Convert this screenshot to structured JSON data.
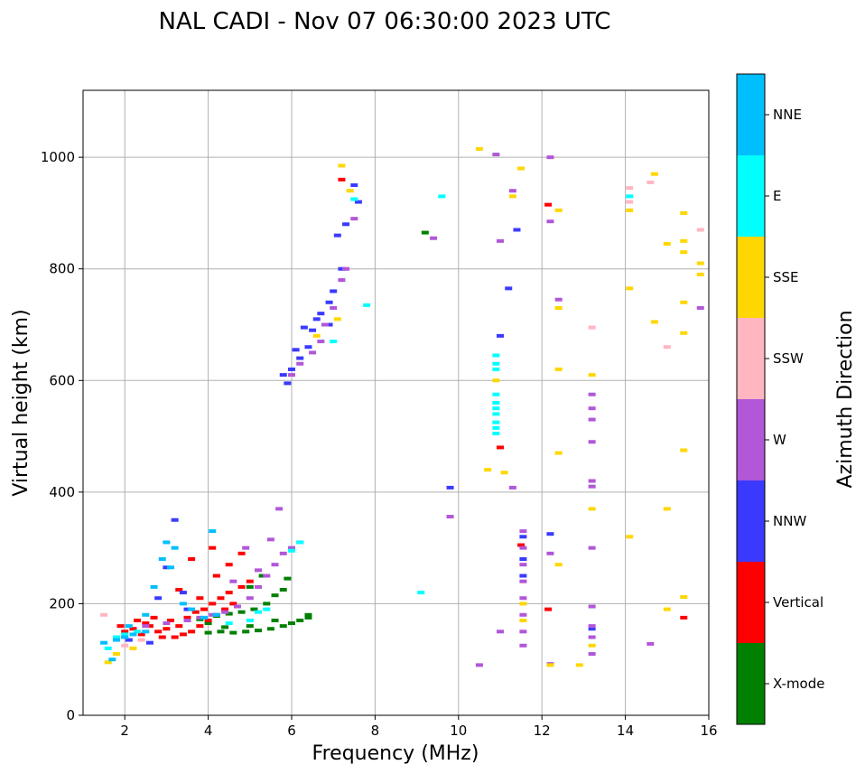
{
  "chart_data": {
    "type": "scatter",
    "title": "NAL CADI - Nov 07 06:30:00 2023 UTC",
    "xlabel": "Frequency (MHz)",
    "ylabel": "Virtual height (km)",
    "xlim": [
      1,
      16
    ],
    "ylim": [
      0,
      1120
    ],
    "xticks": [
      2,
      4,
      6,
      8,
      10,
      12,
      14,
      16
    ],
    "yticks": [
      0,
      200,
      400,
      600,
      800,
      1000
    ],
    "grid": true,
    "colorbar": {
      "label": "Azimuth Direction",
      "categories": [
        {
          "name": "X-mode",
          "color": "#008000"
        },
        {
          "name": "Vertical",
          "color": "#ff0000"
        },
        {
          "name": "NNW",
          "color": "#3a3aff"
        },
        {
          "name": "W",
          "color": "#b157d8"
        },
        {
          "name": "SSW",
          "color": "#ffb6c1"
        },
        {
          "name": "SSE",
          "color": "#ffd700"
        },
        {
          "name": "E",
          "color": "#00ffff"
        },
        {
          "name": "NNE",
          "color": "#00bfff"
        }
      ]
    },
    "series": [
      {
        "name": "X-mode",
        "points": [
          [
            4.0,
            148
          ],
          [
            4.3,
            150
          ],
          [
            4.6,
            148
          ],
          [
            4.9,
            150
          ],
          [
            5.2,
            152
          ],
          [
            5.5,
            155
          ],
          [
            5.8,
            160
          ],
          [
            6.0,
            165
          ],
          [
            6.2,
            170
          ],
          [
            6.4,
            175
          ],
          [
            3.8,
            172
          ],
          [
            4.2,
            178
          ],
          [
            4.5,
            182
          ],
          [
            4.8,
            185
          ],
          [
            5.1,
            190
          ],
          [
            5.4,
            200
          ],
          [
            5.6,
            215
          ],
          [
            5.8,
            225
          ],
          [
            5.9,
            245
          ],
          [
            5.0,
            230
          ],
          [
            5.3,
            250
          ],
          [
            4.0,
            165
          ],
          [
            4.4,
            158
          ],
          [
            5.0,
            160
          ],
          [
            5.6,
            170
          ],
          [
            6.4,
            180
          ],
          [
            9.2,
            865
          ]
        ]
      },
      {
        "name": "Vertical",
        "points": [
          [
            2.0,
            150
          ],
          [
            2.2,
            155
          ],
          [
            2.4,
            145
          ],
          [
            2.6,
            160
          ],
          [
            2.8,
            150
          ],
          [
            3.0,
            155
          ],
          [
            3.2,
            140
          ],
          [
            3.4,
            145
          ],
          [
            3.6,
            150
          ],
          [
            3.8,
            160
          ],
          [
            4.0,
            170
          ],
          [
            4.2,
            180
          ],
          [
            4.4,
            190
          ],
          [
            4.6,
            200
          ],
          [
            2.5,
            165
          ],
          [
            2.9,
            140
          ],
          [
            3.1,
            170
          ],
          [
            3.3,
            160
          ],
          [
            3.5,
            175
          ],
          [
            3.7,
            185
          ],
          [
            3.9,
            190
          ],
          [
            4.1,
            200
          ],
          [
            4.3,
            210
          ],
          [
            4.5,
            220
          ],
          [
            4.8,
            230
          ],
          [
            5.0,
            240
          ],
          [
            4.2,
            250
          ],
          [
            4.5,
            270
          ],
          [
            4.8,
            290
          ],
          [
            4.1,
            300
          ],
          [
            3.6,
            280
          ],
          [
            3.8,
            210
          ],
          [
            2.3,
            170
          ],
          [
            2.7,
            175
          ],
          [
            1.9,
            160
          ],
          [
            3.3,
            225
          ],
          [
            7.2,
            960
          ],
          [
            12.15,
            915
          ],
          [
            12.15,
            190
          ],
          [
            15.4,
            175
          ],
          [
            11.5,
            305
          ],
          [
            11.0,
            480
          ]
        ]
      },
      {
        "name": "NNW",
        "points": [
          [
            3.2,
            350
          ],
          [
            3.0,
            265
          ],
          [
            2.8,
            210
          ],
          [
            3.4,
            220
          ],
          [
            3.5,
            190
          ],
          [
            5.8,
            610
          ],
          [
            6.0,
            620
          ],
          [
            6.2,
            640
          ],
          [
            6.4,
            660
          ],
          [
            6.5,
            690
          ],
          [
            6.7,
            720
          ],
          [
            6.9,
            740
          ],
          [
            7.0,
            760
          ],
          [
            7.2,
            800
          ],
          [
            7.1,
            860
          ],
          [
            7.5,
            950
          ],
          [
            5.9,
            595
          ],
          [
            6.1,
            655
          ],
          [
            6.3,
            695
          ],
          [
            6.6,
            710
          ],
          [
            6.9,
            700
          ],
          [
            7.3,
            880
          ],
          [
            7.6,
            920
          ],
          [
            11.0,
            680
          ],
          [
            11.2,
            765
          ],
          [
            11.4,
            870
          ],
          [
            11.55,
            320
          ],
          [
            11.55,
            280
          ],
          [
            11.55,
            250
          ],
          [
            9.8,
            408
          ],
          [
            12.2,
            325
          ],
          [
            13.2,
            155
          ],
          [
            2.1,
            135
          ],
          [
            2.6,
            130
          ]
        ]
      },
      {
        "name": "W",
        "points": [
          [
            3.5,
            170
          ],
          [
            3.8,
            175
          ],
          [
            4.1,
            180
          ],
          [
            4.4,
            185
          ],
          [
            4.7,
            195
          ],
          [
            5.0,
            210
          ],
          [
            5.2,
            230
          ],
          [
            5.4,
            250
          ],
          [
            5.6,
            270
          ],
          [
            5.8,
            290
          ],
          [
            6.0,
            300
          ],
          [
            6.2,
            310
          ],
          [
            5.5,
            315
          ],
          [
            5.7,
            370
          ],
          [
            4.9,
            300
          ],
          [
            5.2,
            260
          ],
          [
            4.6,
            240
          ],
          [
            6.0,
            610
          ],
          [
            6.2,
            630
          ],
          [
            6.5,
            650
          ],
          [
            6.7,
            670
          ],
          [
            6.8,
            700
          ],
          [
            7.0,
            730
          ],
          [
            7.2,
            780
          ],
          [
            7.3,
            800
          ],
          [
            7.5,
            890
          ],
          [
            11.0,
            850
          ],
          [
            11.3,
            940
          ],
          [
            11.55,
            330
          ],
          [
            11.55,
            300
          ],
          [
            11.55,
            270
          ],
          [
            11.55,
            240
          ],
          [
            11.55,
            210
          ],
          [
            11.55,
            180
          ],
          [
            11.55,
            150
          ],
          [
            11.55,
            125
          ],
          [
            11.0,
            150
          ],
          [
            13.2,
            575
          ],
          [
            13.2,
            550
          ],
          [
            13.2,
            530
          ],
          [
            13.2,
            490
          ],
          [
            13.2,
            420
          ],
          [
            13.2,
            410
          ],
          [
            13.2,
            300
          ],
          [
            13.2,
            195
          ],
          [
            13.2,
            160
          ],
          [
            13.2,
            140
          ],
          [
            13.2,
            110
          ],
          [
            12.2,
            885
          ],
          [
            12.2,
            1000
          ],
          [
            12.2,
            290
          ],
          [
            12.4,
            745
          ],
          [
            11.3,
            408
          ],
          [
            10.9,
            1005
          ],
          [
            10.5,
            90
          ],
          [
            9.4,
            855
          ],
          [
            15.8,
            730
          ],
          [
            14.6,
            128
          ],
          [
            9.8,
            356
          ],
          [
            12.2,
            92
          ],
          [
            2.0,
            140
          ],
          [
            2.5,
            160
          ],
          [
            3.0,
            165
          ]
        ]
      },
      {
        "name": "SSW",
        "points": [
          [
            1.5,
            180
          ],
          [
            2.0,
            125
          ],
          [
            2.4,
            135
          ],
          [
            14.1,
            920
          ],
          [
            14.1,
            945
          ],
          [
            14.6,
            955
          ],
          [
            15.0,
            660
          ],
          [
            13.2,
            695
          ],
          [
            15.8,
            870
          ]
        ]
      },
      {
        "name": "SSE",
        "points": [
          [
            1.6,
            95
          ],
          [
            1.8,
            110
          ],
          [
            2.2,
            120
          ],
          [
            7.1,
            710
          ],
          [
            7.2,
            985
          ],
          [
            7.4,
            940
          ],
          [
            6.6,
            680
          ],
          [
            10.5,
            1015
          ],
          [
            10.7,
            440
          ],
          [
            10.9,
            600
          ],
          [
            11.1,
            435
          ],
          [
            11.3,
            930
          ],
          [
            11.5,
            980
          ],
          [
            11.55,
            200
          ],
          [
            11.55,
            170
          ],
          [
            12.4,
            905
          ],
          [
            12.4,
            730
          ],
          [
            12.4,
            620
          ],
          [
            12.4,
            470
          ],
          [
            12.4,
            270
          ],
          [
            12.2,
            90
          ],
          [
            12.9,
            90
          ],
          [
            13.2,
            610
          ],
          [
            13.2,
            370
          ],
          [
            13.2,
            125
          ],
          [
            14.1,
            905
          ],
          [
            14.1,
            765
          ],
          [
            14.1,
            320
          ],
          [
            14.7,
            970
          ],
          [
            14.7,
            705
          ],
          [
            15.0,
            845
          ],
          [
            15.0,
            370
          ],
          [
            15.0,
            190
          ],
          [
            15.4,
            900
          ],
          [
            15.4,
            850
          ],
          [
            15.4,
            830
          ],
          [
            15.4,
            740
          ],
          [
            15.4,
            685
          ],
          [
            15.4,
            475
          ],
          [
            15.4,
            212
          ],
          [
            15.8,
            810
          ],
          [
            15.8,
            790
          ]
        ]
      },
      {
        "name": "E",
        "points": [
          [
            1.6,
            120
          ],
          [
            1.8,
            140
          ],
          [
            2.0,
            145
          ],
          [
            2.3,
            150
          ],
          [
            4.5,
            165
          ],
          [
            5.0,
            170
          ],
          [
            5.2,
            185
          ],
          [
            5.4,
            190
          ],
          [
            6.0,
            295
          ],
          [
            6.2,
            310
          ],
          [
            7.0,
            670
          ],
          [
            7.8,
            735
          ],
          [
            9.6,
            930
          ],
          [
            9.1,
            220
          ],
          [
            10.9,
            645
          ],
          [
            10.9,
            630
          ],
          [
            10.9,
            620
          ],
          [
            10.9,
            575
          ],
          [
            10.9,
            560
          ],
          [
            10.9,
            550
          ],
          [
            10.9,
            540
          ],
          [
            10.9,
            525
          ],
          [
            10.9,
            515
          ],
          [
            10.9,
            505
          ],
          [
            7.5,
            925
          ],
          [
            14.1,
            930
          ]
        ]
      },
      {
        "name": "NNE",
        "points": [
          [
            1.5,
            130
          ],
          [
            1.8,
            135
          ],
          [
            2.0,
            140
          ],
          [
            2.2,
            145
          ],
          [
            2.5,
            150
          ],
          [
            2.7,
            230
          ],
          [
            2.9,
            280
          ],
          [
            3.1,
            265
          ],
          [
            3.0,
            310
          ],
          [
            3.2,
            300
          ],
          [
            2.5,
            180
          ],
          [
            3.4,
            200
          ],
          [
            4.1,
            330
          ],
          [
            4.2,
            180
          ],
          [
            3.6,
            190
          ],
          [
            3.9,
            175
          ],
          [
            1.7,
            100
          ],
          [
            2.1,
            160
          ]
        ]
      }
    ]
  }
}
